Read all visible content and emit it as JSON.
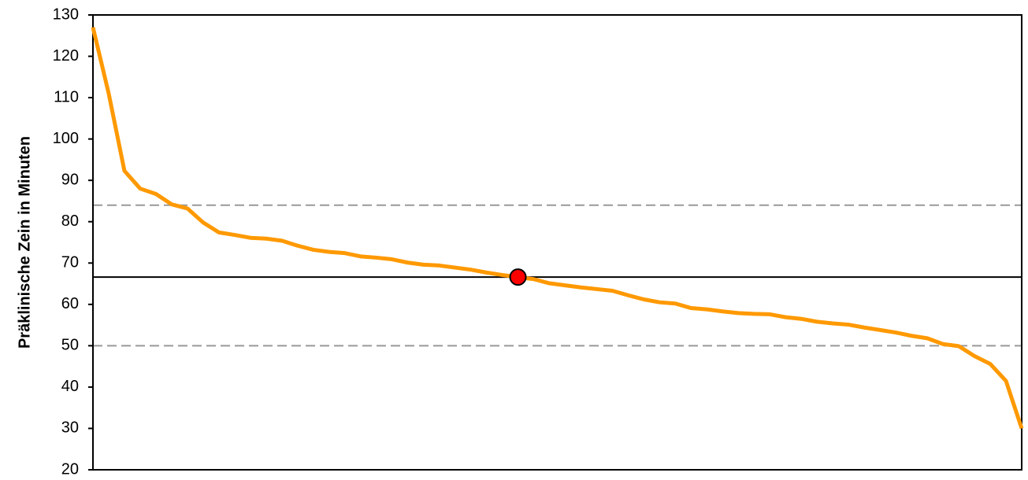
{
  "chart_data": {
    "type": "line",
    "y_label": "Präklinische Zein in Minuten",
    "categories": [
      null,
      null,
      null,
      null,
      null,
      null,
      null,
      null,
      null,
      null,
      null,
      null,
      null,
      null,
      null,
      null,
      null,
      null,
      null,
      null,
      null,
      null,
      null,
      null,
      null,
      null,
      null,
      null,
      null,
      null,
      null,
      null,
      null,
      null,
      null,
      null,
      null,
      null,
      null,
      null,
      null,
      null,
      null,
      null,
      null,
      null,
      null,
      null,
      null,
      null,
      null,
      null,
      null,
      null,
      null,
      null,
      null,
      null,
      null,
      null
    ],
    "series": [
      {
        "color": "#ff9900",
        "values": [
          127,
          111,
          92.3,
          88,
          86.7,
          84.2,
          83.2,
          79.8,
          77.4,
          76.8,
          76.1,
          75.9,
          75.4,
          74.2,
          73.2,
          72.7,
          72.4,
          71.6,
          71.3,
          70.9,
          70.1,
          69.6,
          69.4,
          68.9,
          68.4,
          67.7,
          67.1,
          66.6,
          66.1,
          65.1,
          64.6,
          64.1,
          63.7,
          63.3,
          62.2,
          61.2,
          60.5,
          60.2,
          59.1,
          58.8,
          58.3,
          57.9,
          57.7,
          57.6,
          56.9,
          56.5,
          55.8,
          55.4,
          55.1,
          54.4,
          53.8,
          53.2,
          52.4,
          51.8,
          50.4,
          49.9,
          47.5,
          45.6,
          41.5,
          30
        ]
      }
    ],
    "reference_lines": [
      {
        "value": 84,
        "style": "dashed",
        "color": "#999999"
      },
      {
        "value": 66.6,
        "style": "solid",
        "color": "#000000"
      },
      {
        "value": 50,
        "style": "dashed",
        "color": "#999999"
      }
    ],
    "highlight": {
      "index": 27,
      "value": 66.6,
      "color": "#ff0000"
    },
    "ylim": [
      20,
      130
    ],
    "yticks": [
      20,
      30,
      40,
      50,
      60,
      70,
      80,
      90,
      100,
      110,
      120,
      130
    ]
  }
}
